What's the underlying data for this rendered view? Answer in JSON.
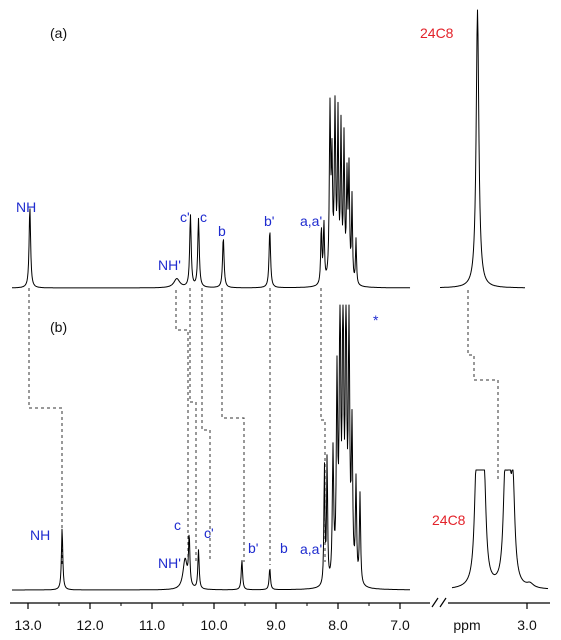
{
  "chart_data": {
    "type": "line",
    "title": "",
    "xlabel": "ppm",
    "ylabel": "",
    "x_unit_label": "ppm",
    "axis_break": true,
    "xlim_left_segment": [
      13.1,
      6.8
    ],
    "xlim_right_segment": [
      3.7,
      2.6
    ],
    "x_ticks_left": [
      "13.0",
      "12.0",
      "11.0",
      "10.0",
      "9.0",
      "8.0",
      "7.0"
    ],
    "x_ticks_right": [
      "3.0"
    ],
    "colors": {
      "peak_labels": "#1f2ccf",
      "host_labels": "#e3222a",
      "trace": "#000000"
    },
    "panels": [
      {
        "label": "(a)",
        "host_label": "24C8",
        "peaks": [
          {
            "label": "NH",
            "ppm": 12.97,
            "height": 0.45
          },
          {
            "label": "NH'",
            "ppm": 10.6,
            "height": 0.05
          },
          {
            "label": "c'",
            "ppm": 10.38,
            "height": 0.4
          },
          {
            "label": "c",
            "ppm": 10.25,
            "height": 0.38
          },
          {
            "label": "b",
            "ppm": 9.85,
            "height": 0.28
          },
          {
            "label": "b'",
            "ppm": 9.1,
            "height": 0.32
          },
          {
            "label": "a,a'",
            "ppm": 8.25,
            "height": 0.33
          }
        ],
        "host_peaks": [
          {
            "ppm": 3.55,
            "height": 1.0
          }
        ]
      },
      {
        "label": "(b)",
        "host_label": "24C8",
        "asterisk": "*",
        "peaks": [
          {
            "label": "NH",
            "ppm": 12.45,
            "height": 0.7
          },
          {
            "label": "NH'",
            "ppm": 10.45,
            "height": 0.1
          },
          {
            "label": "c",
            "ppm": 10.4,
            "height": 0.9
          },
          {
            "label": "c'",
            "ppm": 10.25,
            "height": 0.72
          },
          {
            "label": "b'",
            "ppm": 9.55,
            "height": 0.55
          },
          {
            "label": "b",
            "ppm": 9.1,
            "height": 0.4
          },
          {
            "label": "a,a'",
            "ppm": 8.2,
            "height": 0.5
          }
        ],
        "host_peaks": [
          {
            "ppm": 3.52,
            "height": 0.4
          },
          {
            "ppm": 3.2,
            "height": 0.4
          }
        ]
      }
    ]
  }
}
